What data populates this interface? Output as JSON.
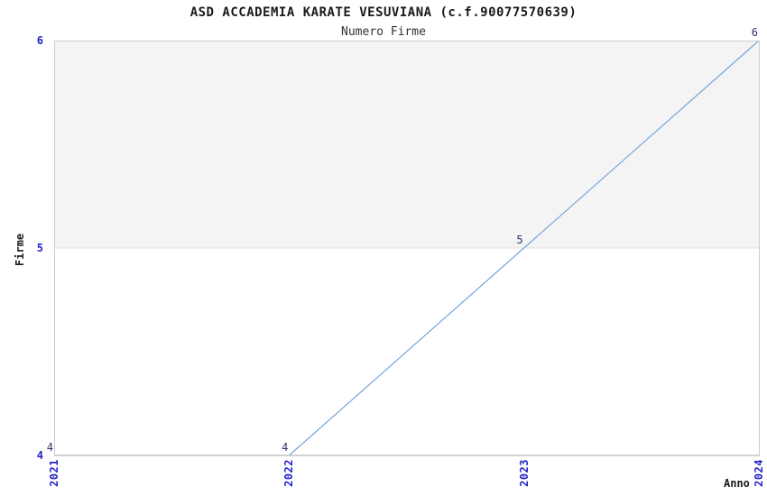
{
  "chart_data": {
    "type": "line",
    "title": "ASD ACCADEMIA KARATE VESUVIANA (c.f.90077570639)",
    "subtitle": "Numero Firme",
    "xlabel": "Anno",
    "ylabel": "Firme",
    "x": [
      2021,
      2022,
      2023,
      2024
    ],
    "series": [
      {
        "name": "Numero Firme",
        "values": [
          4,
          4,
          5,
          6
        ]
      }
    ],
    "point_labels": [
      "4",
      "4",
      "5",
      "6"
    ],
    "xticks": [
      2021,
      2022,
      2023,
      2024
    ],
    "yticks": [
      4,
      5,
      6
    ],
    "xlim": [
      2021,
      2024
    ],
    "ylim": [
      4,
      6
    ],
    "grid": "horizontal-band-between-5-and-6",
    "legend": "none",
    "colors": {
      "line": "#76a5db",
      "tick_labels": "#2424cc",
      "point_labels": "#333366",
      "band": "#f4f4f4",
      "gridline": "#e2e2e2",
      "border": "#cccccc",
      "title": "#1a1a1a",
      "axis_titles": "#1a1a1a",
      "background": "#ffffff"
    }
  }
}
